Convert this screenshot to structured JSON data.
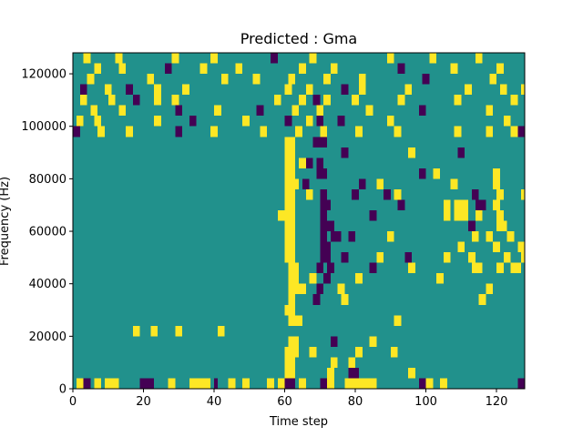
{
  "chart_data": {
    "type": "heatmap",
    "title": "Predicted : Gma",
    "xlabel": "Time step",
    "ylabel": "Frequency (Hz)",
    "xlim": [
      0,
      128
    ],
    "ylim": [
      0,
      128000
    ],
    "xticks": [
      0,
      20,
      40,
      60,
      80,
      100,
      120
    ],
    "xtick_labels": [
      "0",
      "20",
      "40",
      "60",
      "80",
      "100",
      "120"
    ],
    "yticks": [
      0,
      20000,
      40000,
      60000,
      80000,
      100000,
      120000
    ],
    "ytick_labels": [
      "0",
      "20000",
      "40000",
      "60000",
      "80000",
      "100000",
      "120000"
    ],
    "n_time_steps": 128,
    "n_freq_bins": 32,
    "freq_bin_width": 4000,
    "value_levels": [
      -1,
      0,
      1
    ],
    "colors": {
      "-1": "#440154",
      "0": "#21918c",
      "1": "#fde725"
    },
    "background_value": 0,
    "grid": false,
    "cells": [
      [
        1,
        0,
        3,
        1
      ],
      [
        3,
        0,
        2,
        -1
      ],
      [
        6,
        0,
        2,
        1
      ],
      [
        9,
        0,
        2,
        1
      ],
      [
        11,
        0,
        2,
        1
      ],
      [
        19,
        0,
        2,
        -1
      ],
      [
        21,
        0,
        2,
        -1
      ],
      [
        27,
        0,
        2,
        1
      ],
      [
        33,
        0,
        2,
        1
      ],
      [
        35,
        0,
        1,
        1
      ],
      [
        36,
        0,
        3,
        1
      ],
      [
        40,
        0,
        1,
        -1
      ],
      [
        44,
        0,
        2,
        1
      ],
      [
        48,
        0,
        2,
        1
      ],
      [
        55,
        0,
        2,
        1
      ],
      [
        58,
        0,
        2,
        1
      ],
      [
        60,
        0,
        3,
        -1
      ],
      [
        64,
        0,
        2,
        1
      ],
      [
        70,
        0,
        2,
        -1
      ],
      [
        72,
        0,
        2,
        1
      ],
      [
        77,
        0,
        2,
        1
      ],
      [
        79,
        0,
        3,
        1
      ],
      [
        82,
        0,
        2,
        1
      ],
      [
        84,
        0,
        2,
        1
      ],
      [
        98,
        0,
        2,
        -1
      ],
      [
        100,
        0,
        2,
        1
      ],
      [
        104,
        0,
        2,
        1
      ],
      [
        126,
        0,
        2,
        -1
      ],
      [
        60,
        1,
        3,
        1
      ],
      [
        72,
        1,
        2,
        1
      ],
      [
        78,
        1,
        3,
        -1
      ],
      [
        95,
        1,
        2,
        1
      ],
      [
        60,
        2,
        3,
        1
      ],
      [
        73,
        2,
        2,
        1
      ],
      [
        78,
        2,
        2,
        1
      ],
      [
        60,
        3,
        3,
        1
      ],
      [
        62,
        3,
        2,
        1
      ],
      [
        67,
        3,
        2,
        1
      ],
      [
        80,
        3,
        2,
        1
      ],
      [
        90,
        3,
        2,
        1
      ],
      [
        61,
        4,
        3,
        1
      ],
      [
        73,
        4,
        2,
        -1
      ],
      [
        84,
        4,
        2,
        1
      ],
      [
        17,
        5,
        2,
        1
      ],
      [
        22,
        5,
        2,
        1
      ],
      [
        29,
        5,
        2,
        1
      ],
      [
        41,
        5,
        2,
        1
      ],
      [
        61,
        6,
        2,
        1
      ],
      [
        63,
        6,
        2,
        1
      ],
      [
        91,
        6,
        2,
        1
      ],
      [
        60,
        7,
        3,
        1
      ],
      [
        61,
        8,
        2,
        1
      ],
      [
        68,
        8,
        2,
        -1
      ],
      [
        76,
        8,
        2,
        1
      ],
      [
        115,
        8,
        2,
        1
      ],
      [
        61,
        9,
        2,
        1
      ],
      [
        63,
        9,
        3,
        1
      ],
      [
        69,
        9,
        2,
        -1
      ],
      [
        75,
        9,
        2,
        1
      ],
      [
        117,
        9,
        2,
        1
      ],
      [
        61,
        10,
        3,
        1
      ],
      [
        67,
        10,
        2,
        1
      ],
      [
        71,
        10,
        2,
        -1
      ],
      [
        80,
        10,
        2,
        1
      ],
      [
        103,
        10,
        2,
        1
      ],
      [
        61,
        11,
        3,
        1
      ],
      [
        69,
        11,
        2,
        -1
      ],
      [
        72,
        11,
        2,
        -1
      ],
      [
        84,
        11,
        2,
        -1
      ],
      [
        95,
        11,
        2,
        1
      ],
      [
        113,
        11,
        3,
        1
      ],
      [
        120,
        11,
        2,
        1
      ],
      [
        124,
        11,
        3,
        1
      ],
      [
        60,
        12,
        3,
        1
      ],
      [
        70,
        12,
        3,
        -1
      ],
      [
        76,
        12,
        2,
        -1
      ],
      [
        86,
        12,
        2,
        1
      ],
      [
        94,
        12,
        2,
        -1
      ],
      [
        105,
        12,
        2,
        1
      ],
      [
        112,
        12,
        2,
        1
      ],
      [
        122,
        12,
        2,
        1
      ],
      [
        127,
        12,
        1,
        1
      ],
      [
        60,
        13,
        3,
        1
      ],
      [
        70,
        13,
        3,
        -1
      ],
      [
        109,
        13,
        2,
        1
      ],
      [
        119,
        13,
        2,
        1
      ],
      [
        126,
        13,
        2,
        1
      ],
      [
        60,
        14,
        3,
        1
      ],
      [
        70,
        14,
        2,
        -1
      ],
      [
        73,
        14,
        3,
        -1
      ],
      [
        78,
        14,
        2,
        -1
      ],
      [
        89,
        14,
        2,
        1
      ],
      [
        113,
        14,
        2,
        1
      ],
      [
        117,
        14,
        2,
        1
      ],
      [
        123,
        14,
        2,
        1
      ],
      [
        60,
        15,
        3,
        1
      ],
      [
        70,
        15,
        2,
        -1
      ],
      [
        72,
        15,
        2,
        -1
      ],
      [
        112,
        15,
        2,
        -1
      ],
      [
        120,
        15,
        3,
        1
      ],
      [
        58,
        16,
        2,
        1
      ],
      [
        60,
        16,
        3,
        1
      ],
      [
        70,
        16,
        2,
        -1
      ],
      [
        84,
        16,
        2,
        -1
      ],
      [
        105,
        16,
        2,
        1
      ],
      [
        108,
        16,
        2,
        1
      ],
      [
        110,
        16,
        2,
        1
      ],
      [
        114,
        16,
        2,
        1
      ],
      [
        120,
        16,
        2,
        1
      ],
      [
        60,
        17,
        3,
        1
      ],
      [
        70,
        17,
        3,
        -1
      ],
      [
        92,
        17,
        2,
        -1
      ],
      [
        105,
        17,
        2,
        1
      ],
      [
        108,
        17,
        2,
        1
      ],
      [
        110,
        17,
        2,
        1
      ],
      [
        114,
        17,
        3,
        -1
      ],
      [
        119,
        17,
        2,
        1
      ],
      [
        60,
        18,
        3,
        1
      ],
      [
        66,
        18,
        2,
        1
      ],
      [
        70,
        18,
        2,
        -1
      ],
      [
        79,
        18,
        2,
        -1
      ],
      [
        88,
        18,
        2,
        -1
      ],
      [
        91,
        18,
        2,
        1
      ],
      [
        113,
        18,
        2,
        -1
      ],
      [
        120,
        18,
        2,
        1
      ],
      [
        127,
        18,
        1,
        1
      ],
      [
        60,
        19,
        3,
        1
      ],
      [
        62,
        19,
        2,
        1
      ],
      [
        65,
        19,
        2,
        -1
      ],
      [
        81,
        19,
        2,
        -1
      ],
      [
        86,
        19,
        2,
        1
      ],
      [
        107,
        19,
        2,
        1
      ],
      [
        119,
        19,
        2,
        1
      ],
      [
        60,
        20,
        3,
        1
      ],
      [
        69,
        20,
        3,
        -1
      ],
      [
        98,
        20,
        2,
        -1
      ],
      [
        102,
        20,
        2,
        1
      ],
      [
        119,
        20,
        2,
        1
      ],
      [
        60,
        21,
        3,
        1
      ],
      [
        64,
        21,
        2,
        1
      ],
      [
        66,
        21,
        2,
        -1
      ],
      [
        69,
        21,
        2,
        -1
      ],
      [
        60,
        22,
        3,
        1
      ],
      [
        76,
        22,
        2,
        -1
      ],
      [
        95,
        22,
        2,
        1
      ],
      [
        109,
        22,
        2,
        -1
      ],
      [
        60,
        23,
        3,
        1
      ],
      [
        68,
        23,
        2,
        -1
      ],
      [
        70,
        23,
        2,
        -1
      ],
      [
        0,
        24,
        2,
        -1
      ],
      [
        7,
        24,
        2,
        1
      ],
      [
        15,
        24,
        2,
        1
      ],
      [
        29,
        24,
        2,
        -1
      ],
      [
        39,
        24,
        2,
        1
      ],
      [
        53,
        24,
        2,
        1
      ],
      [
        63,
        24,
        2,
        1
      ],
      [
        70,
        24,
        2,
        1
      ],
      [
        80,
        24,
        2,
        1
      ],
      [
        91,
        24,
        2,
        1
      ],
      [
        108,
        24,
        2,
        1
      ],
      [
        117,
        24,
        2,
        1
      ],
      [
        124,
        24,
        2,
        1
      ],
      [
        126,
        24,
        2,
        -1
      ],
      [
        1,
        25,
        2,
        1
      ],
      [
        6,
        25,
        2,
        1
      ],
      [
        23,
        25,
        2,
        1
      ],
      [
        33,
        25,
        2,
        -1
      ],
      [
        48,
        25,
        2,
        1
      ],
      [
        60,
        25,
        2,
        -1
      ],
      [
        66,
        25,
        2,
        1
      ],
      [
        69,
        25,
        2,
        -1
      ],
      [
        75,
        25,
        2,
        -1
      ],
      [
        89,
        25,
        2,
        1
      ],
      [
        122,
        25,
        2,
        1
      ],
      [
        5,
        26,
        2,
        1
      ],
      [
        13,
        26,
        2,
        1
      ],
      [
        29,
        26,
        2,
        -1
      ],
      [
        40,
        26,
        2,
        1
      ],
      [
        52,
        26,
        2,
        -1
      ],
      [
        62,
        26,
        2,
        1
      ],
      [
        69,
        26,
        2,
        1
      ],
      [
        83,
        26,
        2,
        1
      ],
      [
        98,
        26,
        2,
        -1
      ],
      [
        117,
        26,
        2,
        1
      ],
      [
        2,
        27,
        2,
        1
      ],
      [
        10,
        27,
        2,
        1
      ],
      [
        17,
        27,
        2,
        -1
      ],
      [
        23,
        27,
        2,
        1
      ],
      [
        28,
        27,
        2,
        1
      ],
      [
        57,
        27,
        2,
        1
      ],
      [
        64,
        27,
        2,
        1
      ],
      [
        68,
        27,
        2,
        -1
      ],
      [
        71,
        27,
        2,
        1
      ],
      [
        79,
        27,
        2,
        1
      ],
      [
        92,
        27,
        2,
        1
      ],
      [
        108,
        27,
        2,
        1
      ],
      [
        124,
        27,
        2,
        1
      ],
      [
        2,
        28,
        2,
        -1
      ],
      [
        9,
        28,
        2,
        1
      ],
      [
        15,
        28,
        2,
        -1
      ],
      [
        23,
        28,
        2,
        1
      ],
      [
        31,
        28,
        2,
        1
      ],
      [
        60,
        28,
        2,
        1
      ],
      [
        66,
        28,
        2,
        1
      ],
      [
        76,
        28,
        2,
        -1
      ],
      [
        81,
        28,
        2,
        1
      ],
      [
        94,
        28,
        2,
        1
      ],
      [
        111,
        28,
        2,
        1
      ],
      [
        121,
        28,
        2,
        1
      ],
      [
        127,
        28,
        1,
        1
      ],
      [
        4,
        29,
        2,
        1
      ],
      [
        21,
        29,
        2,
        1
      ],
      [
        42,
        29,
        2,
        1
      ],
      [
        51,
        29,
        2,
        1
      ],
      [
        61,
        29,
        2,
        1
      ],
      [
        71,
        29,
        2,
        1
      ],
      [
        81,
        29,
        2,
        1
      ],
      [
        99,
        29,
        2,
        -1
      ],
      [
        118,
        29,
        2,
        1
      ],
      [
        6,
        30,
        2,
        1
      ],
      [
        13,
        30,
        2,
        1
      ],
      [
        26,
        30,
        2,
        -1
      ],
      [
        36,
        30,
        2,
        1
      ],
      [
        46,
        30,
        2,
        1
      ],
      [
        64,
        30,
        2,
        1
      ],
      [
        73,
        30,
        2,
        1
      ],
      [
        92,
        30,
        2,
        -1
      ],
      [
        107,
        30,
        2,
        1
      ],
      [
        120,
        30,
        2,
        1
      ],
      [
        3,
        31,
        2,
        1
      ],
      [
        12,
        31,
        2,
        1
      ],
      [
        28,
        31,
        2,
        1
      ],
      [
        39,
        31,
        2,
        1
      ],
      [
        56,
        31,
        2,
        -1
      ],
      [
        67,
        31,
        2,
        1
      ],
      [
        89,
        31,
        2,
        1
      ],
      [
        101,
        31,
        2,
        1
      ],
      [
        114,
        31,
        2,
        1
      ]
    ]
  }
}
